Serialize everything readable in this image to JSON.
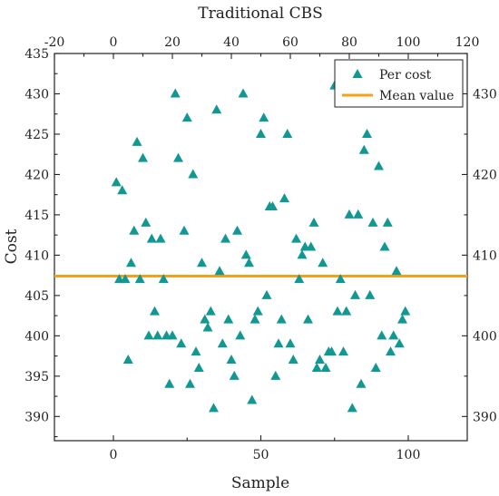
{
  "chart_data": {
    "type": "scatter",
    "title": "Traditional CBS",
    "xlabel": "Sample",
    "ylabel": "Cost",
    "xlim": [
      -20,
      120
    ],
    "ylim": [
      387,
      435
    ],
    "x_ticks_bottom": [
      0,
      50,
      100
    ],
    "x_ticks_top": [
      -20,
      0,
      20,
      40,
      60,
      80,
      100,
      120
    ],
    "y_ticks_left": [
      390,
      395,
      400,
      405,
      410,
      415,
      420,
      425,
      430,
      435
    ],
    "y_ticks_right": [
      390,
      400,
      410,
      420,
      430
    ],
    "grid": false,
    "legend_position": "top-right",
    "series": [
      {
        "name": "Per cost",
        "marker": "triangle",
        "color": "#129893",
        "points": [
          [
            1,
            419
          ],
          [
            2,
            407
          ],
          [
            3,
            418
          ],
          [
            4,
            407
          ],
          [
            5,
            397
          ],
          [
            6,
            409
          ],
          [
            7,
            413
          ],
          [
            8,
            424
          ],
          [
            9,
            407
          ],
          [
            10,
            422
          ],
          [
            11,
            414
          ],
          [
            12,
            400
          ],
          [
            13,
            412
          ],
          [
            14,
            403
          ],
          [
            15,
            400
          ],
          [
            16,
            412
          ],
          [
            17,
            407
          ],
          [
            18,
            400
          ],
          [
            19,
            394
          ],
          [
            20,
            400
          ],
          [
            21,
            430
          ],
          [
            22,
            422
          ],
          [
            23,
            399
          ],
          [
            24,
            413
          ],
          [
            25,
            427
          ],
          [
            26,
            394
          ],
          [
            27,
            420
          ],
          [
            28,
            398
          ],
          [
            29,
            396
          ],
          [
            30,
            409
          ],
          [
            31,
            402
          ],
          [
            32,
            401
          ],
          [
            33,
            403
          ],
          [
            34,
            391
          ],
          [
            35,
            428
          ],
          [
            36,
            408
          ],
          [
            37,
            399
          ],
          [
            38,
            412
          ],
          [
            39,
            402
          ],
          [
            40,
            397
          ],
          [
            41,
            395
          ],
          [
            42,
            413
          ],
          [
            43,
            400
          ],
          [
            44,
            430
          ],
          [
            45,
            410
          ],
          [
            46,
            409
          ],
          [
            47,
            392
          ],
          [
            48,
            402
          ],
          [
            49,
            403
          ],
          [
            50,
            425
          ],
          [
            51,
            427
          ],
          [
            52,
            405
          ],
          [
            53,
            416
          ],
          [
            54,
            416
          ],
          [
            55,
            395
          ],
          [
            56,
            399
          ],
          [
            57,
            402
          ],
          [
            58,
            417
          ],
          [
            59,
            425
          ],
          [
            60,
            399
          ],
          [
            61,
            397
          ],
          [
            62,
            412
          ],
          [
            63,
            407
          ],
          [
            64,
            410
          ],
          [
            65,
            411
          ],
          [
            66,
            402
          ],
          [
            67,
            411
          ],
          [
            68,
            414
          ],
          [
            69,
            396
          ],
          [
            70,
            397
          ],
          [
            71,
            409
          ],
          [
            72,
            396
          ],
          [
            73,
            398
          ],
          [
            74,
            398
          ],
          [
            75,
            431
          ],
          [
            76,
            403
          ],
          [
            77,
            407
          ],
          [
            78,
            398
          ],
          [
            79,
            403
          ],
          [
            80,
            415
          ],
          [
            81,
            391
          ],
          [
            82,
            405
          ],
          [
            83,
            415
          ],
          [
            84,
            394
          ],
          [
            85,
            423
          ],
          [
            86,
            425
          ],
          [
            87,
            405
          ],
          [
            88,
            414
          ],
          [
            89,
            396
          ],
          [
            90,
            421
          ],
          [
            91,
            400
          ],
          [
            92,
            411
          ],
          [
            93,
            414
          ],
          [
            94,
            398
          ],
          [
            95,
            400
          ],
          [
            96,
            408
          ],
          [
            97,
            399
          ],
          [
            98,
            402
          ],
          [
            99,
            403
          ]
        ]
      },
      {
        "name": "Mean value",
        "type": "hline",
        "color": "#f5a018",
        "y": 407.4
      }
    ]
  }
}
